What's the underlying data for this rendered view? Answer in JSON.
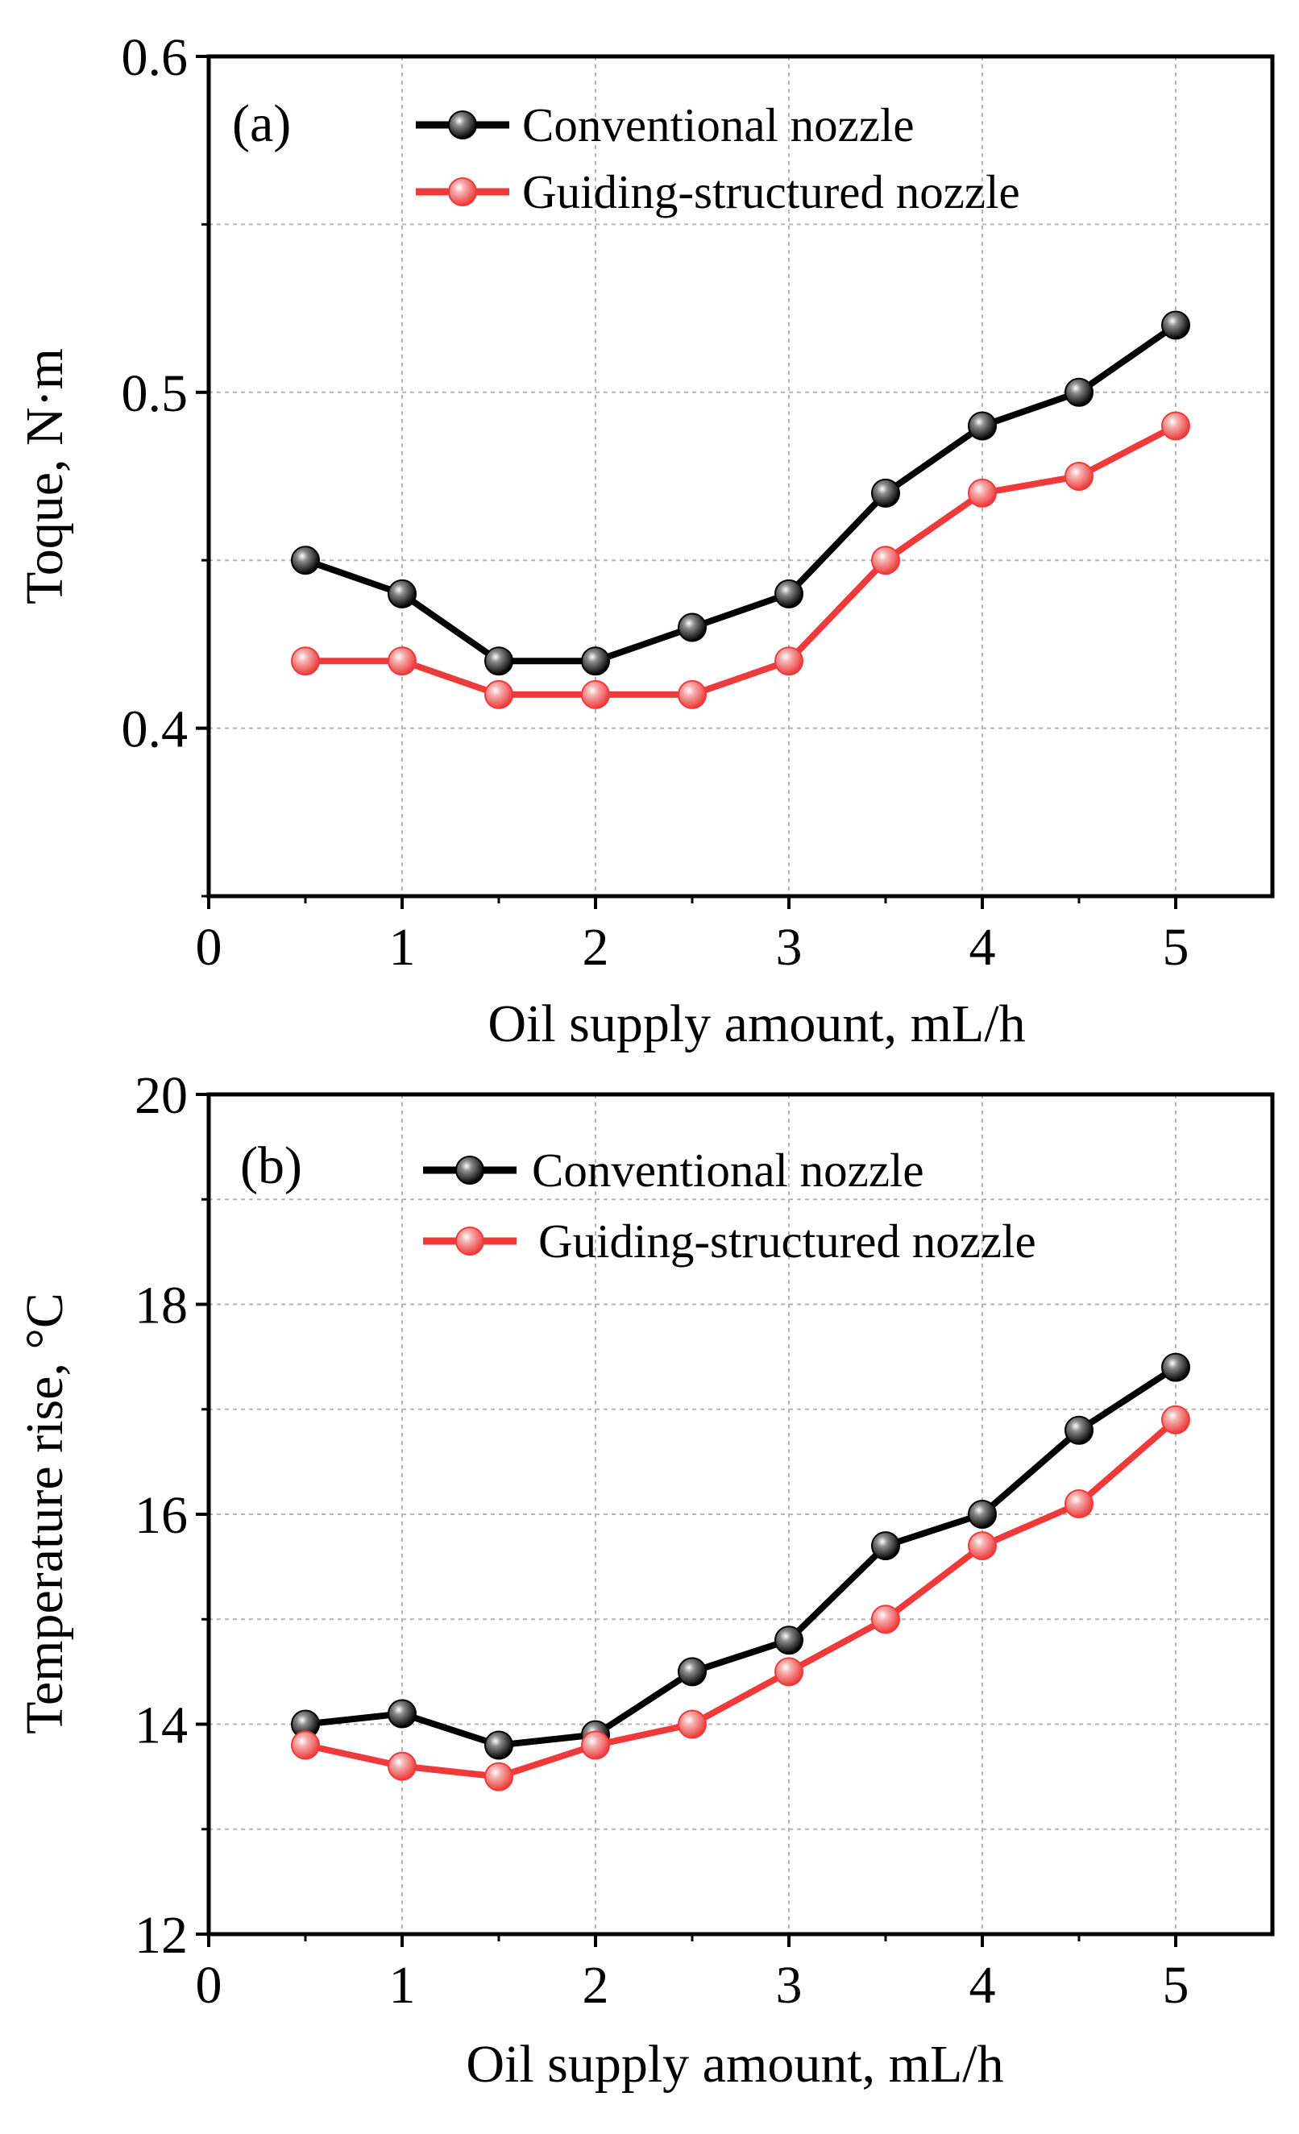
{
  "chart_data": [
    {
      "type": "line",
      "panel_label": "(a)",
      "xlabel": "Oil supply amount, mL/h",
      "ylabel": "Toque, N·m",
      "xlim": [
        0,
        5.5
      ],
      "ylim": [
        0.35,
        0.6
      ],
      "x_ticks": [
        0,
        1,
        2,
        3,
        4,
        5
      ],
      "x_tick_labels": [
        "0",
        "1",
        "2",
        "3",
        "4",
        "5"
      ],
      "y_ticks": [
        0.4,
        0.5,
        0.6
      ],
      "y_tick_labels": [
        "0.4",
        "0.5",
        "0.6"
      ],
      "y_minor_ticks": [
        0.35,
        0.45,
        0.55
      ],
      "grid": true,
      "legend_position": "top",
      "x": [
        0.5,
        1,
        1.5,
        2,
        2.5,
        3,
        3.5,
        4,
        4.5,
        5
      ],
      "series": [
        {
          "name": "Conventional nozzle",
          "color": "#000000",
          "values": [
            0.45,
            0.44,
            0.42,
            0.42,
            0.43,
            0.44,
            0.47,
            0.49,
            0.5,
            0.52
          ]
        },
        {
          "name": "Guiding-structured nozzle",
          "color": "#ee3a3a",
          "values": [
            0.42,
            0.42,
            0.41,
            0.41,
            0.41,
            0.42,
            0.45,
            0.47,
            0.475,
            0.49
          ]
        }
      ]
    },
    {
      "type": "line",
      "panel_label": "(b)",
      "xlabel": "Oil supply amount, mL/h",
      "ylabel": "Temperature rise,  °C",
      "xlim": [
        0,
        5.5
      ],
      "ylim": [
        12,
        20
      ],
      "x_ticks": [
        0,
        1,
        2,
        3,
        4,
        5
      ],
      "x_tick_labels": [
        "0",
        "1",
        "2",
        "3",
        "4",
        "5"
      ],
      "y_ticks": [
        12,
        14,
        16,
        18,
        20
      ],
      "y_tick_labels": [
        "12",
        "14",
        "16",
        "18",
        "20"
      ],
      "y_minor_ticks": [
        13,
        15,
        17,
        19
      ],
      "grid": true,
      "legend_position": "top",
      "x": [
        0.5,
        1,
        1.5,
        2,
        2.5,
        3,
        3.5,
        4,
        4.5,
        5
      ],
      "series": [
        {
          "name": "Conventional nozzle",
          "color": "#000000",
          "values": [
            14.0,
            14.1,
            13.8,
            13.9,
            14.5,
            14.8,
            15.7,
            16.0,
            16.8,
            17.4
          ]
        },
        {
          "name": "Guiding-structured nozzle",
          "color": "#ee3a3a",
          "values": [
            13.8,
            13.6,
            13.5,
            13.8,
            14.0,
            14.5,
            15.0,
            15.7,
            16.1,
            16.9
          ]
        }
      ]
    }
  ]
}
